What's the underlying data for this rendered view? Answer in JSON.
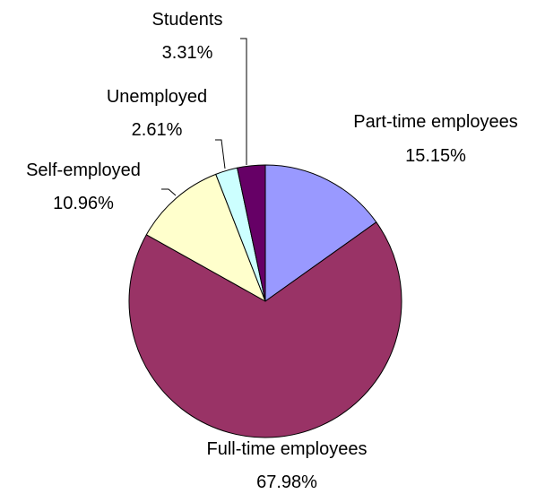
{
  "chart_data": {
    "type": "pie",
    "start_angle_deg": 0,
    "direction": "clockwise",
    "slices": [
      {
        "name": "Part-time employees",
        "value": 15.15,
        "label": "15.15%",
        "color": "#9999ff"
      },
      {
        "name": "Full-time employees",
        "value": 67.98,
        "label": "67.98%",
        "color": "#993366"
      },
      {
        "name": "Self-employed",
        "value": 10.96,
        "label": "10.96%",
        "color": "#ffffcc"
      },
      {
        "name": "Unemployed",
        "value": 2.61,
        "label": "2.61%",
        "color": "#ccffff"
      },
      {
        "name": "Students",
        "value": 3.31,
        "label": "3.31%",
        "color": "#660066"
      }
    ]
  }
}
